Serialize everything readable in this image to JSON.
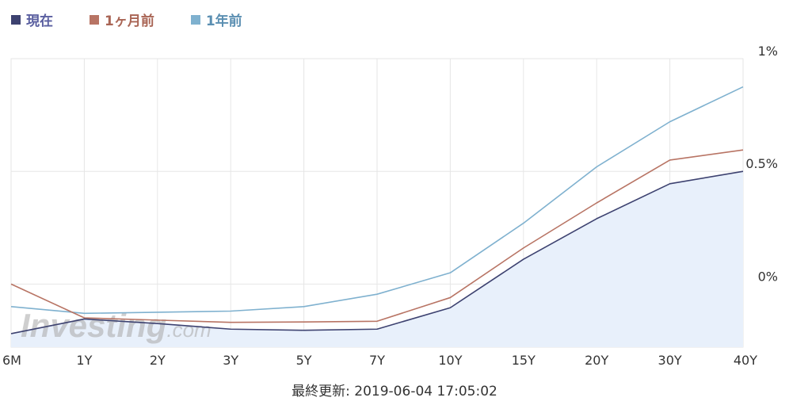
{
  "legend": [
    {
      "label": "現在",
      "color": "#3d4270",
      "text_color": "#5a5fa0"
    },
    {
      "label": "1ヶ月前",
      "color": "#b87464",
      "text_color": "#a96555"
    },
    {
      "label": "1年前",
      "color": "#7fb1cf",
      "text_color": "#5b8fb2"
    }
  ],
  "watermark": {
    "main": "Investing",
    "suffix": ".com"
  },
  "footer": {
    "text": "最終更新: 2019-06-04 17:05:02"
  },
  "chart_data": {
    "type": "line",
    "categories": [
      "6M",
      "1Y",
      "2Y",
      "3Y",
      "5Y",
      "7Y",
      "10Y",
      "15Y",
      "20Y",
      "30Y",
      "40Y"
    ],
    "y_ticks": [
      {
        "value": 0,
        "label": "0%"
      },
      {
        "value": 0.5,
        "label": "0.5%"
      },
      {
        "value": 1,
        "label": "1%"
      }
    ],
    "ylim": [
      -0.28,
      1
    ],
    "y_axis_position": "right",
    "grid": true,
    "legend_position": "top-left",
    "series": [
      {
        "name": "1年前",
        "color": "#7fb1cf",
        "fill": false,
        "values": [
          -0.1,
          -0.13,
          -0.125,
          -0.12,
          -0.1,
          -0.045,
          0.05,
          0.27,
          0.52,
          0.72,
          0.875
        ]
      },
      {
        "name": "1ヶ月前",
        "color": "#b87464",
        "fill": false,
        "values": [
          0.0,
          -0.15,
          -0.16,
          -0.17,
          -0.168,
          -0.165,
          -0.06,
          0.16,
          0.36,
          0.55,
          0.595
        ]
      },
      {
        "name": "現在",
        "color": "#3d4270",
        "fill": true,
        "fill_color": "#e8f0fb",
        "values": [
          -0.22,
          -0.155,
          -0.175,
          -0.2,
          -0.205,
          -0.2,
          -0.105,
          0.11,
          0.29,
          0.445,
          0.5
        ]
      }
    ]
  }
}
